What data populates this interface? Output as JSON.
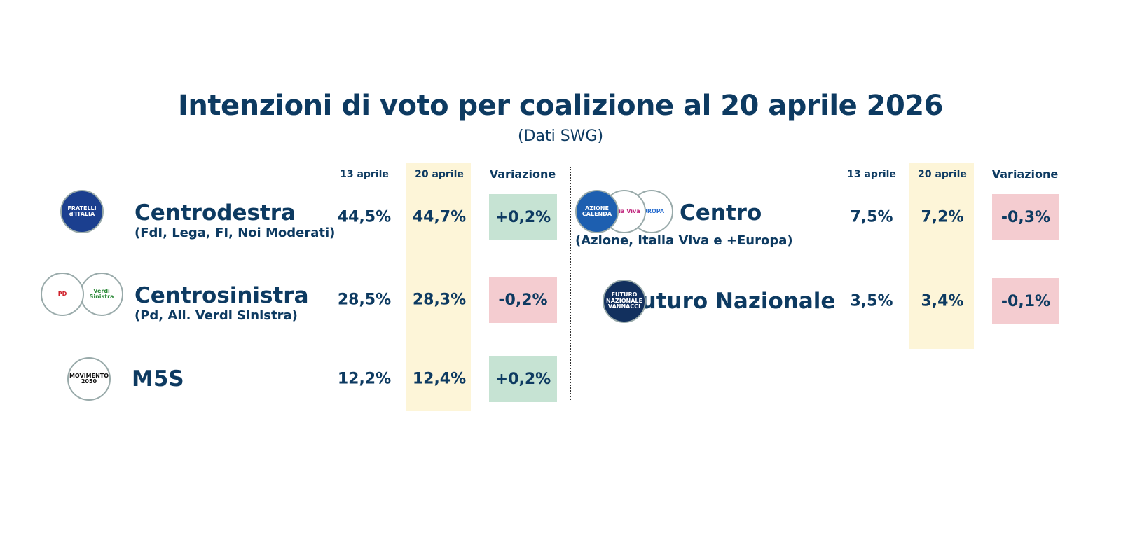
{
  "title": "Intenzioni di voto per coalizione al 20 aprile 2026",
  "subtitle": "(Dati SWG)",
  "left": {
    "headers": [
      "13 aprile",
      "20 aprile",
      "Variazione"
    ],
    "rows": [
      {
        "name": "Centrodestra",
        "detail": "(FdI, Lega, FI, Noi Moderati)",
        "prev": "44,5%",
        "curr": "44,7%",
        "change": "+0,2%",
        "change_color": "#c6e3d3",
        "logos": [
          {
            "label": "FRATELLI d'ITALIA",
            "fill": "#1b3f8f",
            "ink": "#ffffff"
          }
        ]
      },
      {
        "name": "Centrosinistra",
        "detail": "(Pd, All. Verdi Sinistra)",
        "prev": "28,5%",
        "curr": "28,3%",
        "change": "-0,2%",
        "change_color": "#f4ccd0",
        "logos": [
          {
            "label": "PD",
            "fill": "#ffffff",
            "ink": "#d0202a"
          },
          {
            "label": "Verdi Sinistra",
            "fill": "#ffffff",
            "ink": "#2e8b3a"
          }
        ]
      },
      {
        "name": "M5S",
        "prev": "12,2%",
        "curr": "12,4%",
        "change": "+0,2%",
        "change_color": "#c6e3d3",
        "logos": [
          {
            "label": "MOVIMENTO 2050",
            "fill": "#ffffff",
            "ink": "#111111"
          }
        ]
      }
    ]
  },
  "right": {
    "headers": [
      "13 aprile",
      "20 aprile",
      "Variazione"
    ],
    "rows": [
      {
        "name": "Centro",
        "detail": "(Azione, Italia Viva e +Europa)",
        "prev": "7,5%",
        "curr": "7,2%",
        "change": "-0,3%",
        "change_color": "#f4ccd0",
        "logos": [
          {
            "label": "AZIONE CALENDA",
            "fill": "#1d5fb0",
            "ink": "#ffffff"
          },
          {
            "label": "Italia Viva",
            "fill": "#ffffff",
            "ink": "#c0257d"
          },
          {
            "label": "EUROPA",
            "fill": "#ffffff",
            "ink": "#2a6fd0"
          }
        ]
      },
      {
        "name": "Futuro Nazionale",
        "prev": "3,5%",
        "curr": "3,4%",
        "change": "-0,1%",
        "change_color": "#f4ccd0",
        "logos": [
          {
            "label": "FUTURO NAZIONALE VANNACCI",
            "fill": "#12305e",
            "ink": "#ffffff"
          }
        ]
      }
    ]
  }
}
